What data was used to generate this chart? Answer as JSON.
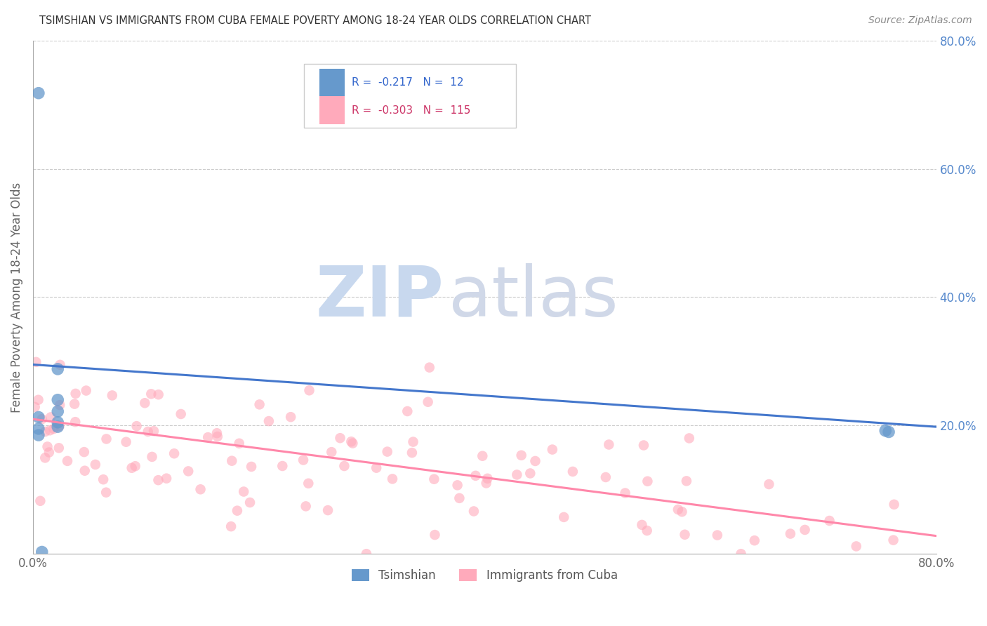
{
  "title": "TSIMSHIAN VS IMMIGRANTS FROM CUBA FEMALE POVERTY AMONG 18-24 YEAR OLDS CORRELATION CHART",
  "source": "Source: ZipAtlas.com",
  "ylabel": "Female Poverty Among 18-24 Year Olds",
  "tsimshian_R": -0.217,
  "tsimshian_N": 12,
  "cuba_R": -0.303,
  "cuba_N": 115,
  "xlim": [
    0.0,
    0.8
  ],
  "ylim": [
    0.0,
    0.8
  ],
  "background_color": "#ffffff",
  "tsimshian_color": "#6699cc",
  "cuba_color": "#ffaabb",
  "tsimshian_line_color": "#4477cc",
  "cuba_line_color": "#ff88aa",
  "legend_tsimshian": "Tsimshian",
  "legend_cuba": "Immigrants from Cuba",
  "tsimshian_x": [
    0.005,
    0.005,
    0.005,
    0.005,
    0.022,
    0.022,
    0.022,
    0.022,
    0.022,
    0.755,
    0.758,
    0.008
  ],
  "tsimshian_y": [
    0.718,
    0.195,
    0.213,
    0.185,
    0.288,
    0.222,
    0.24,
    0.205,
    0.198,
    0.192,
    0.19,
    0.003
  ],
  "blue_line_x0": 0.0,
  "blue_line_y0": 0.295,
  "blue_line_x1": 0.8,
  "blue_line_y1": 0.198,
  "pink_line_x0": 0.0,
  "pink_line_y0": 0.21,
  "pink_line_x1": 0.8,
  "pink_line_y1": 0.028
}
